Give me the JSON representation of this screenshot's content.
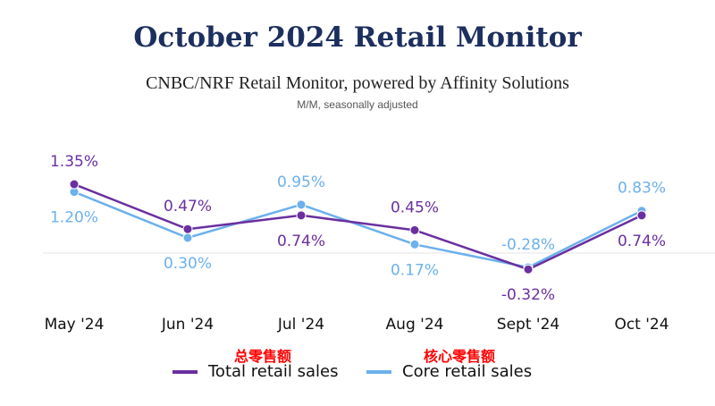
{
  "chart_data": {
    "type": "line",
    "title": "October 2024 Retail Monitor",
    "subtitle": "CNBC/NRF Retail Monitor, powered by Affinity Solutions",
    "note": "M/M, seasonally adjusted",
    "categories": [
      "May '24",
      "Jun '24",
      "Jul '24",
      "Aug '24",
      "Sept '24",
      "Oct '24"
    ],
    "series": [
      {
        "name": "Total retail sales",
        "annotation": "总零售额",
        "color": "#6a2fa0",
        "values": [
          1.35,
          0.47,
          0.74,
          0.45,
          -0.32,
          0.74
        ],
        "labels": [
          "1.35%",
          "0.47%",
          "0.74%",
          "0.45%",
          "-0.32%",
          "0.74%"
        ]
      },
      {
        "name": "Core retail sales",
        "annotation": "核心零售额",
        "color": "#6cb0ec",
        "values": [
          1.2,
          0.3,
          0.95,
          0.17,
          -0.28,
          0.83
        ],
        "labels": [
          "1.20%",
          "0.30%",
          "0.95%",
          "0.17%",
          "-0.28%",
          "0.83%"
        ]
      }
    ],
    "xlabel": "",
    "ylabel": "",
    "ylim": [
      -0.5,
      1.6
    ],
    "grid": false,
    "zero_line": true,
    "legend": "bottom-center"
  }
}
